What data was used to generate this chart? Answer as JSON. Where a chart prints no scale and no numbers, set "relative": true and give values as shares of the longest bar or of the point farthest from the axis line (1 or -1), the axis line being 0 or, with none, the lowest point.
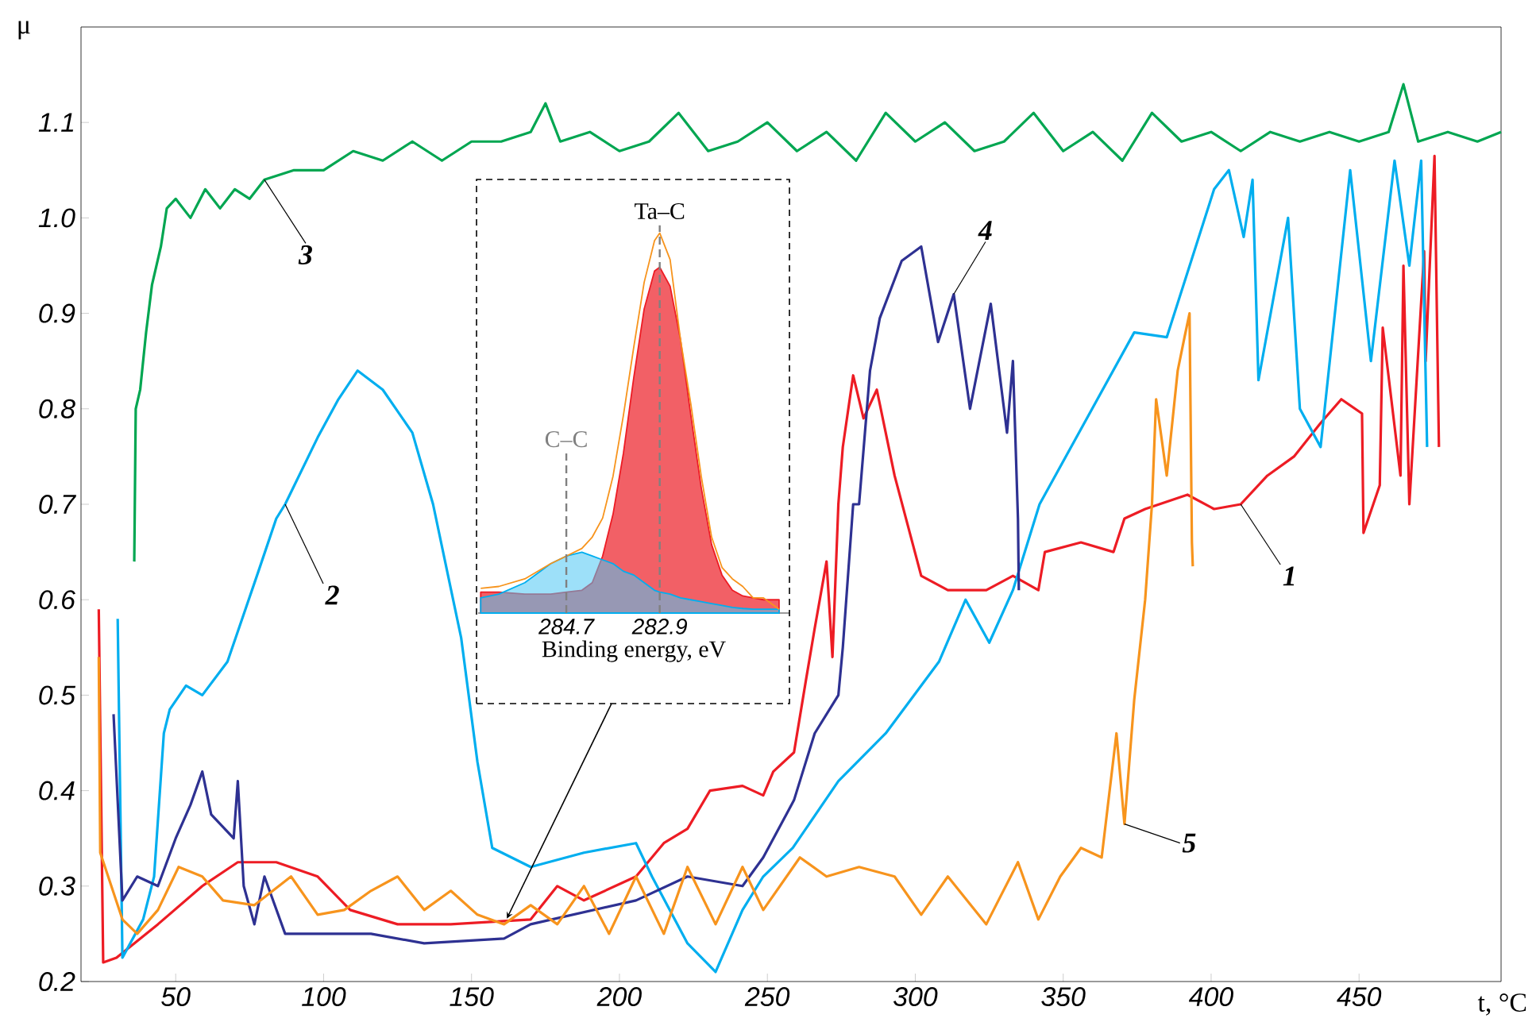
{
  "chart_data": [
    {
      "type": "line",
      "xlabel": "t, °C",
      "ylabel": "μ",
      "xlim": [
        18,
        498
      ],
      "ylim": [
        0.2,
        1.2
      ],
      "xticks": [
        50,
        100,
        150,
        200,
        250,
        300,
        350,
        400,
        450
      ],
      "yticks": [
        0.2,
        0.3,
        0.4,
        0.5,
        0.6,
        0.7,
        0.8,
        0.9,
        {
          "value": 1.0,
          "label": "1.0"
        },
        1.1
      ],
      "series": [
        {
          "name": "1",
          "color": "#ed1c24",
          "x": [
            24,
            25.5,
            30,
            44,
            59,
            71,
            84,
            98,
            109,
            125,
            143,
            170,
            179,
            188,
            205.6,
            215,
            223,
            230.6,
            241.6,
            248.6,
            252,
            259,
            263,
            266,
            270,
            272,
            274,
            275.5,
            279,
            282.5,
            287,
            293,
            302,
            311,
            324,
            333,
            341.6,
            343.8,
            356,
            367,
            370.7,
            377.7,
            392,
            401,
            410,
            419,
            428,
            437,
            444,
            451,
            451.5,
            457,
            458,
            464,
            465,
            467,
            472,
            472.5,
            475.5,
            477
          ],
          "values": [
            0.59,
            0.22,
            0.225,
            0.26,
            0.3,
            0.325,
            0.325,
            0.31,
            0.275,
            0.26,
            0.26,
            0.265,
            0.3,
            0.285,
            0.31,
            0.345,
            0.36,
            0.4,
            0.405,
            0.395,
            0.42,
            0.44,
            0.515,
            0.57,
            0.64,
            0.54,
            0.7,
            0.76,
            0.835,
            0.79,
            0.82,
            0.73,
            0.625,
            0.61,
            0.61,
            0.625,
            0.61,
            0.65,
            0.66,
            0.65,
            0.685,
            0.695,
            0.71,
            0.695,
            0.7,
            0.73,
            0.75,
            0.785,
            0.81,
            0.795,
            0.67,
            0.72,
            0.885,
            0.73,
            0.95,
            0.7,
            0.965,
            0.85,
            1.065,
            0.76
          ]
        },
        {
          "name": "2",
          "color": "#00aeef",
          "x": [
            30.4,
            32,
            39,
            42.7,
            46,
            48,
            53.5,
            59,
            67.5,
            78,
            84,
            87,
            98,
            105,
            111.5,
            120,
            130,
            137,
            146.5,
            152,
            157,
            170,
            188,
            205.6,
            211,
            223,
            232.5,
            241.6,
            248.6,
            258.6,
            274,
            290,
            308,
            317,
            325,
            333,
            342,
            374,
            385,
            401,
            406,
            411,
            414,
            416,
            426,
            430,
            437,
            447,
            454,
            462,
            467,
            471,
            473
          ],
          "values": [
            0.58,
            0.225,
            0.265,
            0.31,
            0.46,
            0.485,
            0.51,
            0.5,
            0.535,
            0.63,
            0.685,
            0.7,
            0.77,
            0.81,
            0.84,
            0.82,
            0.775,
            0.7,
            0.56,
            0.43,
            0.34,
            0.32,
            0.335,
            0.345,
            0.31,
            0.24,
            0.21,
            0.275,
            0.31,
            0.34,
            0.41,
            0.46,
            0.535,
            0.6,
            0.555,
            0.61,
            0.7,
            0.88,
            0.875,
            1.03,
            1.05,
            0.98,
            1.04,
            0.83,
            1.0,
            0.8,
            0.76,
            1.05,
            0.85,
            1.06,
            0.95,
            1.06,
            0.76
          ]
        },
        {
          "name": "3",
          "color": "#00a651",
          "x": [
            36,
            36.5,
            38,
            40,
            42,
            45,
            47,
            50,
            55,
            60,
            65,
            70,
            75,
            80,
            90,
            100,
            110,
            120,
            130,
            140,
            150,
            160,
            170,
            175,
            180,
            190,
            200,
            210,
            220,
            230,
            240,
            250,
            260,
            270,
            280,
            290,
            300,
            310,
            320,
            330,
            340,
            350,
            360,
            370,
            380,
            390,
            400,
            410,
            420,
            430,
            440,
            450,
            460,
            465,
            470,
            480,
            490,
            498
          ],
          "values": [
            0.64,
            0.8,
            0.82,
            0.88,
            0.93,
            0.97,
            1.01,
            1.02,
            1.0,
            1.03,
            1.01,
            1.03,
            1.02,
            1.04,
            1.05,
            1.05,
            1.07,
            1.06,
            1.08,
            1.06,
            1.08,
            1.08,
            1.09,
            1.12,
            1.08,
            1.09,
            1.07,
            1.08,
            1.11,
            1.07,
            1.08,
            1.1,
            1.07,
            1.09,
            1.06,
            1.11,
            1.08,
            1.1,
            1.07,
            1.08,
            1.11,
            1.07,
            1.09,
            1.06,
            1.11,
            1.08,
            1.09,
            1.07,
            1.09,
            1.08,
            1.09,
            1.08,
            1.09,
            1.14,
            1.08,
            1.09,
            1.08,
            1.09
          ]
        },
        {
          "name": "4",
          "color": "#2e3192",
          "x": [
            29,
            32,
            37,
            44,
            50,
            55,
            59,
            62,
            69.6,
            71,
            73,
            76.6,
            80,
            87,
            116,
            134,
            161,
            170,
            205.6,
            223,
            241.6,
            248.6,
            259,
            266,
            274,
            275.5,
            279,
            281,
            284.7,
            288,
            295.4,
            302,
            307.7,
            313,
            318.5,
            325.5,
            331,
            333,
            334.7,
            335
          ],
          "values": [
            0.48,
            0.285,
            0.31,
            0.3,
            0.35,
            0.385,
            0.42,
            0.375,
            0.35,
            0.41,
            0.3,
            0.26,
            0.31,
            0.25,
            0.25,
            0.24,
            0.245,
            0.26,
            0.285,
            0.31,
            0.3,
            0.33,
            0.39,
            0.46,
            0.5,
            0.55,
            0.7,
            0.7,
            0.84,
            0.895,
            0.955,
            0.97,
            0.87,
            0.92,
            0.8,
            0.91,
            0.775,
            0.85,
            0.685,
            0.61
          ]
        },
        {
          "name": "5",
          "color": "#f7941d",
          "x": [
            24,
            24.5,
            32,
            37,
            44,
            51,
            59,
            66,
            76.6,
            89,
            98,
            107,
            116,
            125,
            134,
            143,
            152,
            161,
            170,
            179,
            188,
            196.5,
            205.6,
            215,
            223,
            232.5,
            241.6,
            248.6,
            261,
            270,
            281,
            293,
            302,
            311,
            324,
            334.7,
            341.6,
            349,
            356,
            363,
            368,
            370.7,
            374,
            377.7,
            380,
            381.4,
            385,
            388.7,
            391,
            392.7,
            393.5,
            393.8
          ],
          "values": [
            0.54,
            0.335,
            0.265,
            0.25,
            0.275,
            0.32,
            0.31,
            0.285,
            0.28,
            0.31,
            0.27,
            0.275,
            0.295,
            0.31,
            0.275,
            0.295,
            0.27,
            0.26,
            0.28,
            0.26,
            0.3,
            0.25,
            0.31,
            0.25,
            0.32,
            0.26,
            0.32,
            0.275,
            0.33,
            0.31,
            0.32,
            0.31,
            0.27,
            0.31,
            0.26,
            0.325,
            0.265,
            0.31,
            0.34,
            0.33,
            0.46,
            0.365,
            0.495,
            0.6,
            0.7,
            0.81,
            0.73,
            0.84,
            0.875,
            0.9,
            0.66,
            0.635
          ]
        }
      ]
    },
    {
      "type": "line",
      "relative": true,
      "xlabel": "Binding energy, eV",
      "xlim": [
        286.4,
        280.4
      ],
      "xticks": [
        284.7,
        282.9
      ],
      "ref_lines": [
        {
          "axis": "x",
          "value": 284.7,
          "label": "C–C",
          "color": "#808080",
          "line_style": "dashed"
        },
        {
          "axis": "x",
          "value": 282.9,
          "label": "Ta–C",
          "color": "#808080",
          "line_style": "dashed"
        }
      ],
      "series": [
        {
          "type": "area",
          "color": "#ed1c24",
          "x": [
            286.35,
            286,
            285.5,
            285,
            284.7,
            284.4,
            284.2,
            284,
            283.8,
            283.6,
            283.4,
            283.2,
            283,
            282.9,
            282.7,
            282.5,
            282.3,
            282.1,
            281.9,
            281.7,
            281.5,
            281.3,
            281.1,
            280.9,
            280.6
          ],
          "values": [
            0.055,
            0.055,
            0.05,
            0.05,
            0.055,
            0.06,
            0.08,
            0.15,
            0.26,
            0.42,
            0.62,
            0.8,
            0.9,
            0.91,
            0.86,
            0.72,
            0.52,
            0.33,
            0.18,
            0.1,
            0.06,
            0.045,
            0.04,
            0.035,
            0.035
          ]
        },
        {
          "type": "area",
          "color": "#00aeef",
          "x": [
            286.35,
            286,
            285.5,
            285,
            284.7,
            284.4,
            284.2,
            284,
            283.8,
            283.6,
            283.4,
            283.2,
            283,
            282.9,
            282.7,
            282.5,
            282.3,
            282.1,
            281.9,
            281.7,
            281.5,
            281.3,
            281.1,
            280.9,
            280.6
          ],
          "values": [
            0.04,
            0.05,
            0.08,
            0.13,
            0.15,
            0.16,
            0.15,
            0.14,
            0.13,
            0.11,
            0.1,
            0.08,
            0.06,
            0.055,
            0.05,
            0.04,
            0.035,
            0.03,
            0.025,
            0.02,
            0.015,
            0.012,
            0.01,
            0.01,
            0.01
          ]
        },
        {
          "type": "line",
          "color": "#f7941d",
          "x": [
            286.35,
            286,
            285.5,
            285,
            284.7,
            284.4,
            284.2,
            284,
            283.8,
            283.6,
            283.4,
            283.2,
            283,
            282.9,
            282.7,
            282.5,
            282.3,
            282.1,
            281.9,
            281.7,
            281.5,
            281.3,
            281.1,
            280.9,
            280.6
          ],
          "values": [
            0.065,
            0.07,
            0.09,
            0.13,
            0.15,
            0.17,
            0.2,
            0.25,
            0.36,
            0.52,
            0.7,
            0.87,
            0.98,
            1.0,
            0.93,
            0.72,
            0.55,
            0.36,
            0.2,
            0.12,
            0.09,
            0.07,
            0.04,
            0.04,
            0.01
          ]
        }
      ]
    }
  ]
}
